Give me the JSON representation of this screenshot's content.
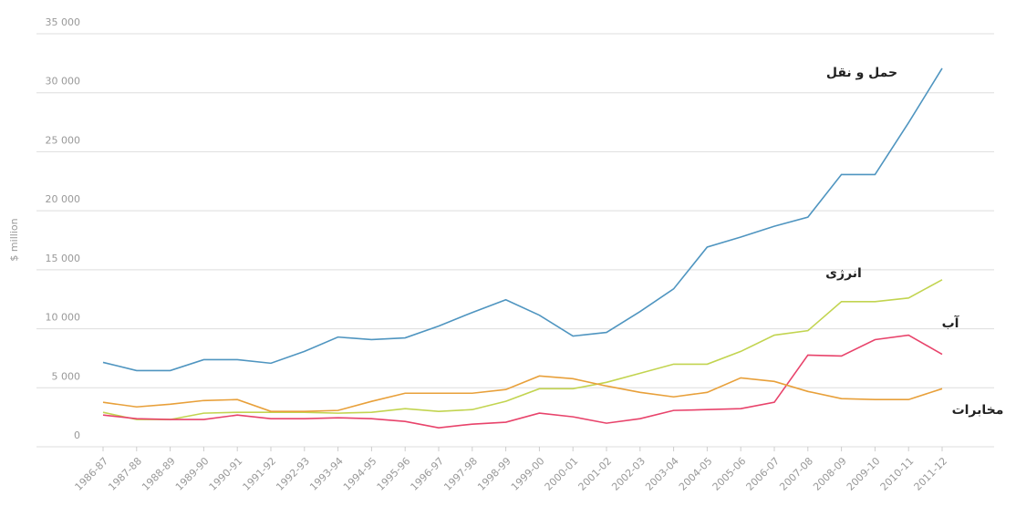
{
  "chart_data": {
    "type": "line",
    "y_label": "$ million",
    "categories": [
      "1986-87",
      "1987-88",
      "1988-89",
      "1989-90",
      "1990-91",
      "1991-92",
      "1992-93",
      "1993-94",
      "1994-95",
      "1995-96",
      "1996-97",
      "1997-98",
      "1998-99",
      "1999-00",
      "2000-01",
      "2001-02",
      "2002-03",
      "2003-04",
      "2004-05",
      "2005-06",
      "2006-07",
      "2007-08",
      "2008-09",
      "2009-10",
      "2010-11",
      "2011-12"
    ],
    "series": [
      {
        "name": "حمل و نقل",
        "color": "#4f95c0",
        "values": [
          7150,
          6460,
          6460,
          7380,
          7380,
          7080,
          8080,
          9300,
          9080,
          9230,
          10230,
          11380,
          12460,
          11150,
          9380,
          9690,
          11460,
          13380,
          16920,
          17770,
          18690,
          19460,
          23070,
          23070,
          27460,
          32070
        ]
      },
      {
        "name": "انرژی",
        "color": "#c2d450",
        "values": [
          2920,
          2310,
          2310,
          2850,
          2920,
          2920,
          2920,
          2850,
          2920,
          3230,
          3000,
          3150,
          3850,
          4920,
          4920,
          5460,
          6230,
          7000,
          7000,
          8080,
          9460,
          9840,
          12300,
          12300,
          12610,
          14150
        ]
      },
      {
        "name": "آب",
        "color": "#e8436b",
        "values": [
          2690,
          2380,
          2310,
          2310,
          2690,
          2380,
          2380,
          2460,
          2380,
          2150,
          1610,
          1920,
          2080,
          2850,
          2540,
          2000,
          2380,
          3080,
          3150,
          3230,
          3770,
          7770,
          7690,
          9080,
          9460,
          7840
        ]
      },
      {
        "name": "مخابرات",
        "color": "#e8a03a",
        "values": [
          3770,
          3380,
          3610,
          3920,
          4000,
          3000,
          3000,
          3080,
          3850,
          4540,
          4540,
          4540,
          4850,
          6000,
          5770,
          5150,
          4610,
          4230,
          4610,
          5840,
          5540,
          4690,
          4080,
          4000,
          4000,
          4920
        ]
      }
    ],
    "ylim": [
      0,
      35000
    ],
    "yticks": [
      0,
      {
        "value": 5000,
        "label": "5 000"
      },
      {
        "value": 10000,
        "label": "10 000"
      },
      {
        "value": 15000,
        "label": "15 000"
      },
      {
        "value": 20000,
        "label": "20 000"
      },
      {
        "value": 25000,
        "label": "25 000"
      },
      {
        "value": 30000,
        "label": "30 000"
      },
      {
        "value": 35000,
        "label": "35 000"
      }
    ],
    "grid": true
  }
}
